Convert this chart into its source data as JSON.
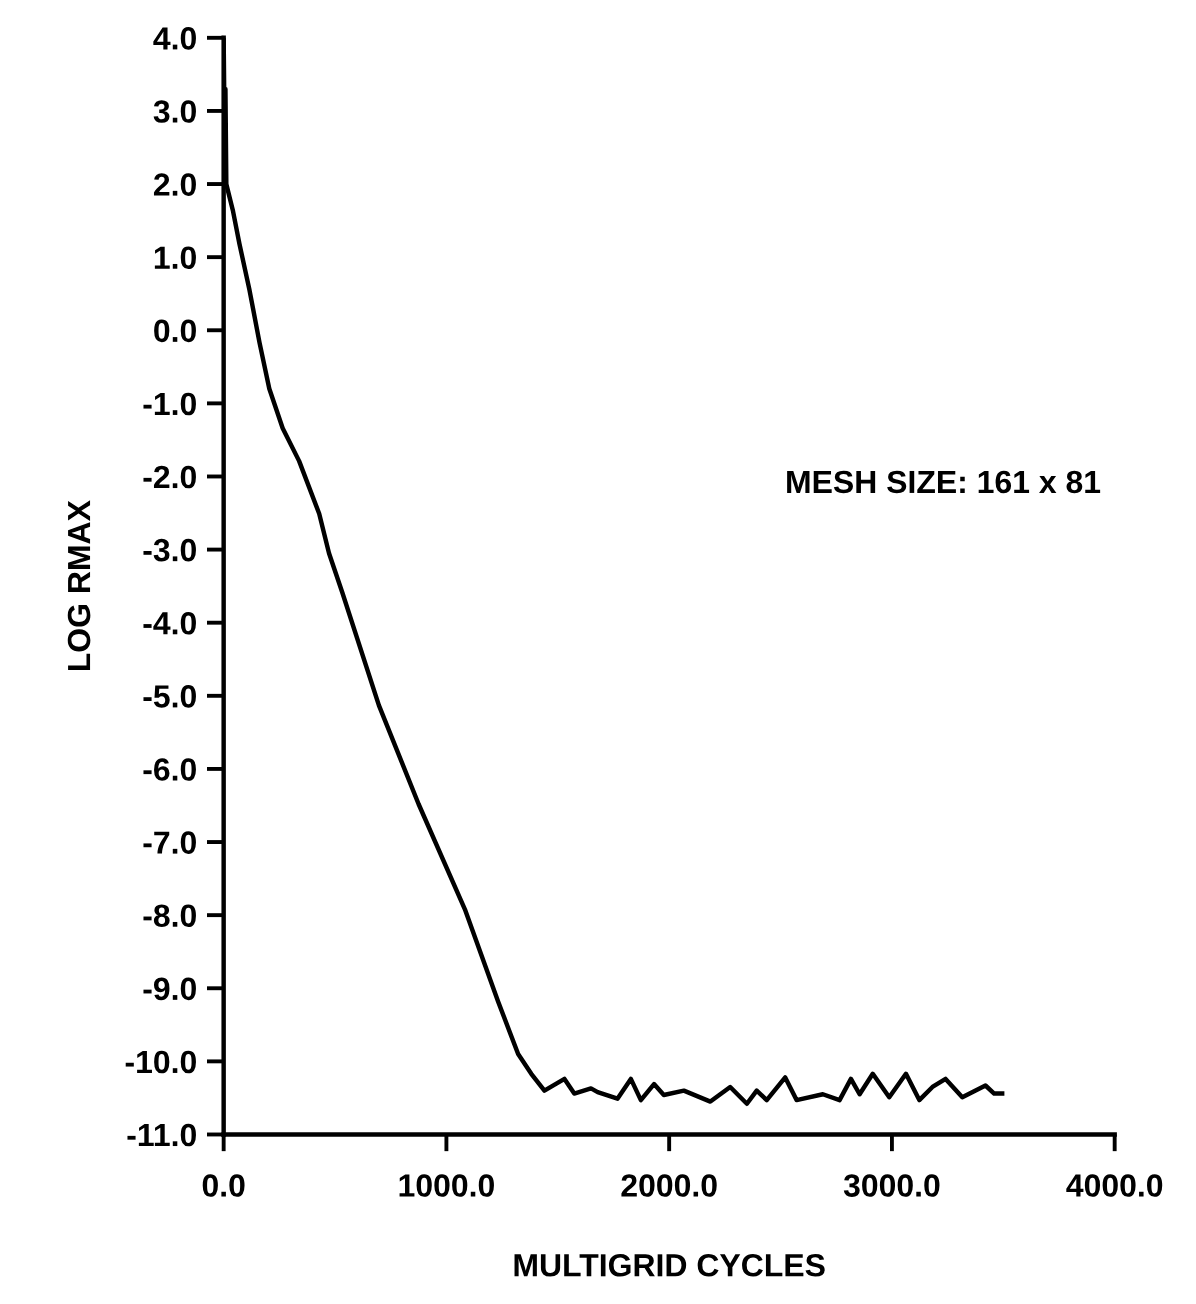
{
  "chart_data": {
    "type": "line",
    "xlabel": "MULTIGRID CYCLES",
    "ylabel": "LOG RMAX",
    "annotations": [
      "MESH SIZE: 161 x 81"
    ],
    "series": [
      {
        "color": "#000000",
        "x": [
          0,
          5,
          8,
          12,
          20,
          42,
          71,
          116,
          161,
          205,
          265,
          339,
          429,
          473,
          533,
          697,
          875,
          1083,
          1232,
          1322,
          1381,
          1440,
          1530,
          1574,
          1649,
          1679,
          1768,
          1828,
          1873,
          1932,
          1976,
          2066,
          2185,
          2274,
          2349,
          2393,
          2438,
          2521,
          2572,
          2690,
          2765,
          2816,
          2855,
          2914,
          2988,
          3063,
          3123,
          3182,
          3241,
          3316,
          3420,
          3459,
          3495
        ],
        "values": [
          4.0,
          2.5,
          3.3,
          2.0,
          1.9,
          1.63,
          1.18,
          0.55,
          -0.17,
          -0.8,
          -1.34,
          -1.79,
          -2.51,
          -3.05,
          -3.59,
          -5.13,
          -6.48,
          -7.92,
          -9.18,
          -9.9,
          -10.17,
          -10.4,
          -10.24,
          -10.44,
          -10.37,
          -10.42,
          -10.51,
          -10.24,
          -10.53,
          -10.31,
          -10.46,
          -10.4,
          -10.55,
          -10.35,
          -10.58,
          -10.4,
          -10.53,
          -10.22,
          -10.53,
          -10.45,
          -10.53,
          -10.24,
          -10.45,
          -10.17,
          -10.49,
          -10.17,
          -10.53,
          -10.35,
          -10.24,
          -10.49,
          -10.33,
          -10.44,
          -10.44
        ]
      }
    ],
    "xlim": [
      0,
      4000
    ],
    "ylim": [
      -11,
      4
    ],
    "xticks": [
      {
        "value": 0,
        "label": "0.0"
      },
      {
        "value": 1000,
        "label": "1000.0"
      },
      {
        "value": 2000,
        "label": "2000.0"
      },
      {
        "value": 3000,
        "label": "3000.0"
      },
      {
        "value": 4000,
        "label": "4000.0"
      }
    ],
    "yticks": [
      {
        "value": 4,
        "label": "4.0"
      },
      {
        "value": 3,
        "label": "3.0"
      },
      {
        "value": 2,
        "label": "2.0"
      },
      {
        "value": 1,
        "label": "1.0"
      },
      {
        "value": 0,
        "label": "0.0"
      },
      {
        "value": -1,
        "label": "-1.0"
      },
      {
        "value": -2,
        "label": "-2.0"
      },
      {
        "value": -3,
        "label": "-3.0"
      },
      {
        "value": -4,
        "label": "-4.0"
      },
      {
        "value": -5,
        "label": "-5.0"
      },
      {
        "value": -6,
        "label": "-6.0"
      },
      {
        "value": -7,
        "label": "-7.0"
      },
      {
        "value": -8,
        "label": "-8.0"
      },
      {
        "value": -9,
        "label": "-9.0"
      },
      {
        "value": -10,
        "label": "-10.0"
      },
      {
        "value": -11,
        "label": "-11.0"
      }
    ],
    "marker": "none",
    "line_style": "solid"
  }
}
